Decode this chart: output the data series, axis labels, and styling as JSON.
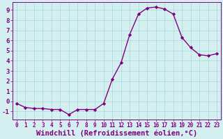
{
  "x": [
    0,
    1,
    2,
    3,
    4,
    5,
    6,
    7,
    8,
    9,
    10,
    11,
    12,
    13,
    14,
    15,
    16,
    17,
    18,
    19,
    20,
    21,
    22,
    23
  ],
  "y": [
    -0.2,
    -0.6,
    -0.7,
    -0.7,
    -0.8,
    -0.8,
    -1.3,
    -0.8,
    -0.8,
    -0.8,
    -0.2,
    2.2,
    3.8,
    6.6,
    8.6,
    9.2,
    9.3,
    9.1,
    8.6,
    6.3,
    5.3,
    4.6,
    4.5,
    4.7
  ],
  "line_color": "#800080",
  "marker": "D",
  "marker_size": 2.2,
  "line_width": 1.0,
  "bg_color": "#d4efef",
  "grid_color": "#a8d8d8",
  "xlabel": "Windchill (Refroidissement éolien,°C)",
  "ylim": [
    -1.8,
    9.8
  ],
  "xlim": [
    -0.5,
    23.5
  ],
  "yticks": [
    -1,
    0,
    1,
    2,
    3,
    4,
    5,
    6,
    7,
    8,
    9
  ],
  "xticks": [
    0,
    1,
    2,
    3,
    4,
    5,
    6,
    7,
    8,
    9,
    10,
    11,
    12,
    13,
    14,
    15,
    16,
    17,
    18,
    19,
    20,
    21,
    22,
    23
  ],
  "tick_label_fontsize": 5.5,
  "xlabel_fontsize": 7.5,
  "ytick_label_fontsize": 6.5
}
